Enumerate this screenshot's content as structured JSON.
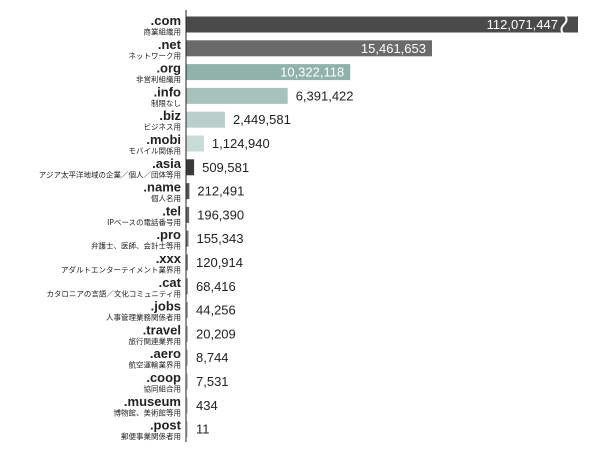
{
  "chart_data": {
    "type": "bar",
    "orientation": "horizontal",
    "title": "",
    "xlabel": "",
    "ylabel": "",
    "legend": "none",
    "grid": false,
    "broken_axis": {
      "category": ".com",
      "break_marker": true
    },
    "categories": [
      {
        "tld": ".com",
        "desc": "商業組織用",
        "value": 112071447,
        "label": "112,071,447",
        "color": "#4a4a4a"
      },
      {
        "tld": ".net",
        "desc": "ネットワーク用",
        "value": 15461653,
        "label": "15,461,653",
        "color": "#6a6a6a"
      },
      {
        "tld": ".org",
        "desc": "非営利組織用",
        "value": 10322118,
        "label": "10,322,118",
        "color": "#8fb3a9"
      },
      {
        "tld": ".info",
        "desc": "制限なし",
        "value": 6391422,
        "label": "6,391,422",
        "color": "#a5c3bb"
      },
      {
        "tld": ".biz",
        "desc": "ビジネス用",
        "value": 2449581,
        "label": "2,449,581",
        "color": "#b9cfca"
      },
      {
        "tld": ".mobi",
        "desc": "モバイル関係用",
        "value": 1124940,
        "label": "1,124,940",
        "color": "#c8dbd6"
      },
      {
        "tld": ".asia",
        "desc": "アジア太平洋地域の企業／個人／団体等用",
        "value": 509581,
        "label": "509,581",
        "color": "#3a3a3a"
      },
      {
        "tld": ".name",
        "desc": "個人名用",
        "value": 212491,
        "label": "212,491",
        "color": "#555555"
      },
      {
        "tld": ".tel",
        "desc": "IPベースの電話番号用",
        "value": 196390,
        "label": "196,390",
        "color": "#666666"
      },
      {
        "tld": ".pro",
        "desc": "弁護士、医師、会計士等用",
        "value": 155343,
        "label": "155,343",
        "color": "#777777"
      },
      {
        "tld": ".xxx",
        "desc": "アダルトエンターテイメント業界用",
        "value": 120914,
        "label": "120,914",
        "color": "#888888"
      },
      {
        "tld": ".cat",
        "desc": "カタロニアの言語／文化コミュニティ用",
        "value": 68416,
        "label": "68,416",
        "color": "#999999"
      },
      {
        "tld": ".jobs",
        "desc": "人事管理業務関係者用",
        "value": 44256,
        "label": "44,256",
        "color": "#aaaaaa"
      },
      {
        "tld": ".travel",
        "desc": "旅行関連業界用",
        "value": 20209,
        "label": "20,209",
        "color": "#b5b5b5"
      },
      {
        "tld": ".aero",
        "desc": "航空運輸業界用",
        "value": 8744,
        "label": "8,744",
        "color": "#c0c0c0"
      },
      {
        "tld": ".coop",
        "desc": "協同組合用",
        "value": 7531,
        "label": "7,531",
        "color": "#c8c8c8"
      },
      {
        "tld": ".museum",
        "desc": "博物館、美術館等用",
        "value": 434,
        "label": "434",
        "color": "#d0d0d0"
      },
      {
        "tld": ".post",
        "desc": "郵便事業関係者用",
        "value": 11,
        "label": "11",
        "color": "#d8d8d8"
      }
    ]
  }
}
